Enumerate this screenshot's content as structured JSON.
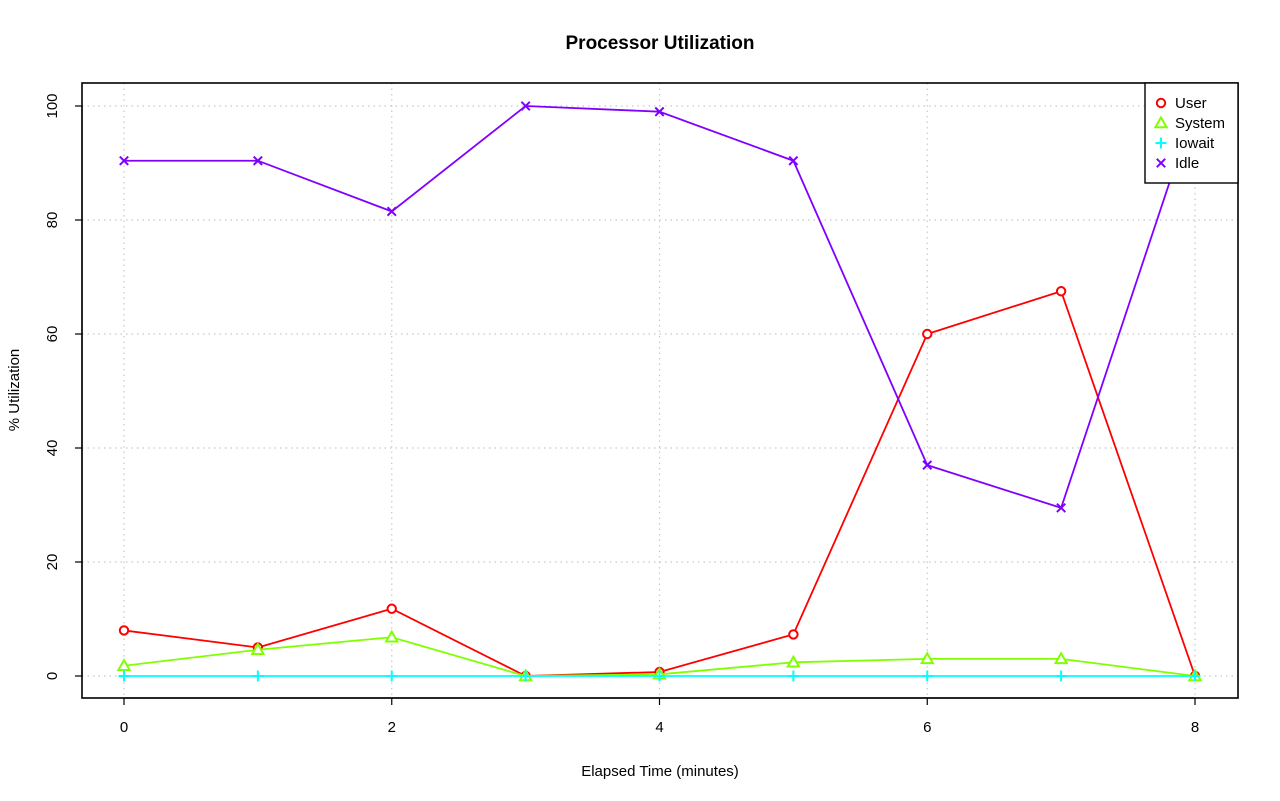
{
  "chart_data": {
    "type": "line",
    "title": "Processor Utilization",
    "xlabel": "Elapsed Time (minutes)",
    "ylabel": "% Utilization",
    "xlim": [
      0,
      8
    ],
    "ylim": [
      0,
      100
    ],
    "x_ticks": [
      0,
      2,
      4,
      6,
      8
    ],
    "y_ticks": [
      0,
      20,
      40,
      60,
      80,
      100
    ],
    "grid": true,
    "legend_position": "top-right",
    "x": [
      0,
      1,
      2,
      3,
      4,
      5,
      6,
      7,
      8
    ],
    "series": [
      {
        "name": "User",
        "color": "#ff0000",
        "marker": "circle",
        "values": [
          8,
          5,
          11.8,
          0,
          0.7,
          7.3,
          60,
          67.5,
          0
        ]
      },
      {
        "name": "System",
        "color": "#80ff00",
        "marker": "triangle",
        "values": [
          1.8,
          4.6,
          6.8,
          0,
          0.3,
          2.4,
          3,
          3,
          0
        ]
      },
      {
        "name": "Iowait",
        "color": "#00ffff",
        "marker": "plus",
        "values": [
          0,
          0,
          0,
          0,
          0,
          0,
          0,
          0,
          0
        ]
      },
      {
        "name": "Idle",
        "color": "#8000ff",
        "marker": "cross",
        "values": [
          90.4,
          90.4,
          81.5,
          100,
          99,
          90.4,
          37,
          29.5,
          100
        ]
      }
    ]
  }
}
